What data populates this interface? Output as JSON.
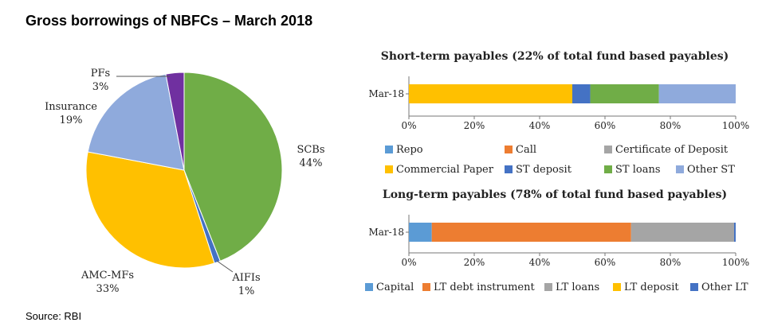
{
  "title": "Gross borrowings of NBFCs – March 2018",
  "source": "Source: RBI",
  "colors": {
    "scbs": "#70ad47",
    "aifis": "#4472c4",
    "amc_mfs": "#ffc000",
    "insurance": "#8faadc",
    "pfs": "#7030a0",
    "repo": "#5b9bd5",
    "call": "#ed7d31",
    "cd": "#a5a5a5",
    "cp": "#ffc000",
    "st_deposit": "#4472c4",
    "st_loans": "#70ad47",
    "other_st": "#8faadc",
    "capital": "#5b9bd5",
    "lt_debt": "#ed7d31",
    "lt_loans": "#a5a5a5",
    "lt_deposit": "#ffc000",
    "other_lt": "#4472c4"
  },
  "chart_data": [
    {
      "type": "pie",
      "labels": [
        "SCBs",
        "AIFIs",
        "AMC-MFs",
        "Insurance",
        "PFs"
      ],
      "values": [
        44,
        1,
        33,
        19,
        3
      ],
      "value_labels": [
        "44%",
        "1%",
        "33%",
        "19%",
        "3%"
      ]
    },
    {
      "type": "bar",
      "orientation": "horizontal",
      "stacked": true,
      "title": "Short-term payables (22% of total fund based payables)",
      "categories": [
        "Mar-18"
      ],
      "xlim": [
        0,
        100
      ],
      "x_ticks": [
        "0%",
        "20%",
        "40%",
        "60%",
        "80%",
        "100%"
      ],
      "series": [
        {
          "name": "Repo",
          "values": [
            0
          ]
        },
        {
          "name": "Call",
          "values": [
            0
          ]
        },
        {
          "name": "Certificate of Deposit",
          "values": [
            0
          ]
        },
        {
          "name": "Commercial Paper",
          "values": [
            50
          ]
        },
        {
          "name": "ST deposit",
          "values": [
            5.5
          ]
        },
        {
          "name": "ST loans",
          "values": [
            21
          ]
        },
        {
          "name": "Other ST",
          "values": [
            23.5
          ]
        }
      ]
    },
    {
      "type": "bar",
      "orientation": "horizontal",
      "stacked": true,
      "title": "Long-term payables (78% of total fund based payables)",
      "categories": [
        "Mar-18"
      ],
      "xlim": [
        0,
        100
      ],
      "x_ticks": [
        "0%",
        "20%",
        "40%",
        "60%",
        "80%",
        "100%"
      ],
      "series": [
        {
          "name": "Capital",
          "values": [
            7
          ]
        },
        {
          "name": "LT debt instrument",
          "values": [
            61
          ]
        },
        {
          "name": "LT loans",
          "values": [
            31.5
          ]
        },
        {
          "name": "LT deposit",
          "values": [
            0
          ]
        },
        {
          "name": "Other LT",
          "values": [
            0.5
          ]
        }
      ]
    }
  ]
}
